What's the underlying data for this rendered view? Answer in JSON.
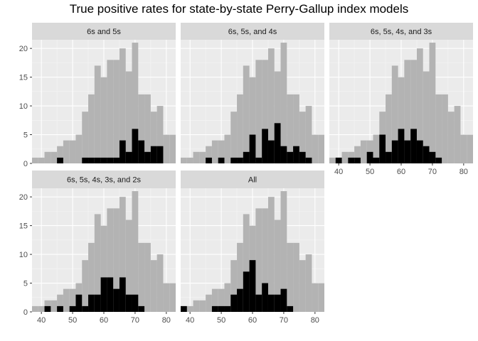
{
  "title": "True positive rates for state-by-state Perry-Gallup index models",
  "colors": {
    "panel_bg": "#ebebeb",
    "grid_major": "#ffffff",
    "strip_bg": "#d9d9d9",
    "all_states_bar": "#b3b3b3",
    "model_bar": "#000000"
  },
  "chart_data": {
    "type": "bar",
    "layout": "facet_wrap 3 columns",
    "x_ticks": [
      40,
      50,
      60,
      70,
      80
    ],
    "y_ticks": [
      0,
      5,
      10,
      15,
      20
    ],
    "xlim": [
      37,
      83
    ],
    "ylim": [
      0,
      21.5
    ],
    "bin_width": 2,
    "background_histogram": {
      "bin_centers": [
        38,
        40,
        42,
        44,
        46,
        48,
        50,
        52,
        54,
        56,
        58,
        60,
        62,
        64,
        66,
        68,
        70,
        72,
        74,
        76,
        78,
        80,
        82
      ],
      "values": [
        1,
        1,
        2,
        2,
        3,
        4,
        4,
        5,
        9,
        12,
        17,
        15,
        18,
        18,
        20,
        16,
        21,
        12,
        12,
        9,
        10,
        5,
        5
      ]
    },
    "panels": [
      {
        "label": "6s and 5s",
        "values": [
          0,
          0,
          0,
          0,
          1,
          0,
          0,
          0,
          1,
          1,
          1,
          1,
          1,
          1,
          4,
          2,
          6,
          4,
          2,
          3,
          3
        ]
      },
      {
        "label": "6s, 5s, and 4s",
        "values": [
          0,
          0,
          0,
          0,
          1,
          0,
          1,
          0,
          1,
          1,
          2,
          5,
          1,
          6,
          4,
          7,
          3,
          2,
          3,
          2,
          1
        ]
      },
      {
        "label": "6s, 5s, 4s, and 3s",
        "values": [
          0,
          1,
          0,
          1,
          1,
          0,
          2,
          1,
          5,
          2,
          4,
          6,
          4,
          6,
          4,
          3,
          2,
          1,
          0,
          0,
          0
        ]
      },
      {
        "label": "6s, 5s, 4s, 3s, and 2s",
        "values": [
          0,
          0,
          1,
          0,
          1,
          0,
          1,
          3,
          1,
          3,
          3,
          6,
          6,
          4,
          6,
          3,
          3,
          1,
          0,
          0,
          0
        ]
      },
      {
        "label": "All",
        "values": [
          1,
          0,
          0,
          0,
          0,
          1,
          1,
          1,
          3,
          4,
          7,
          9,
          3,
          5,
          3,
          3,
          4,
          1,
          0,
          0,
          0
        ]
      }
    ]
  }
}
